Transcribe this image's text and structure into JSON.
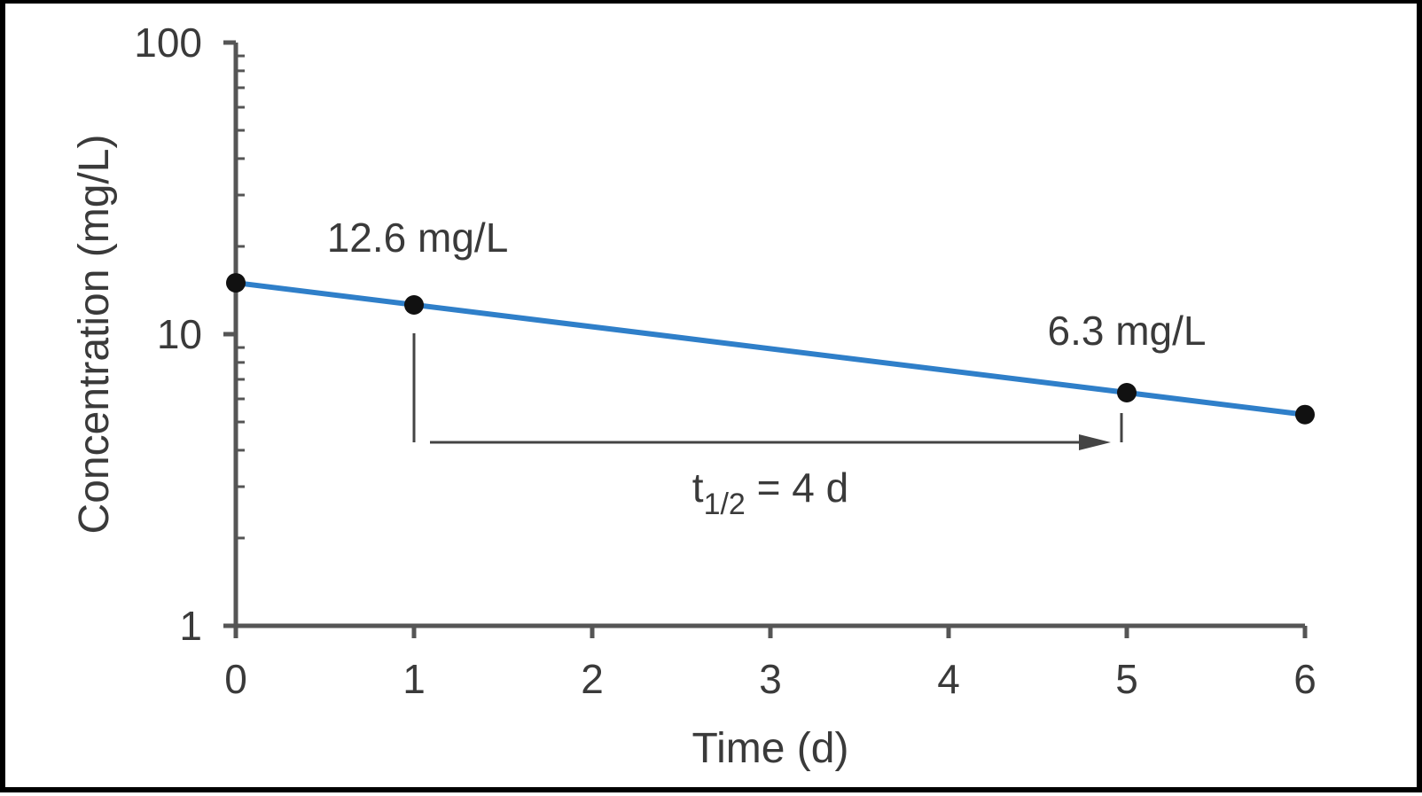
{
  "colors": {
    "line": "#2f7fc9",
    "axis": "#555555",
    "point": "#111111",
    "text": "#3a3a3a",
    "frame": "#000000"
  },
  "chart_data": {
    "type": "line",
    "xlabel": "Time (d)",
    "ylabel": "Concentration (mg/L)",
    "x_ticks": [
      "0",
      "1",
      "2",
      "3",
      "4",
      "5",
      "6"
    ],
    "y_ticks": [
      "1",
      "10",
      "100"
    ],
    "xlim": [
      0,
      6
    ],
    "ylim": [
      1,
      100
    ],
    "y_scale": "log",
    "grid": false,
    "series": [
      {
        "x": [
          0,
          1,
          5,
          6
        ],
        "y": [
          15,
          12.6,
          6.3,
          5.3
        ]
      }
    ],
    "fit_line": {
      "x": [
        0,
        6
      ],
      "y": [
        15,
        5.3
      ]
    },
    "annotations": [
      {
        "text": "12.6 mg/L",
        "x": 1,
        "y": 12.6
      },
      {
        "text": "6.3 mg/L",
        "x": 5,
        "y": 6.3
      }
    ],
    "half_life": {
      "prefix": "t",
      "subscript": "1/2",
      "suffix": " = 4 d",
      "x_start": 1,
      "x_end": 5
    }
  }
}
